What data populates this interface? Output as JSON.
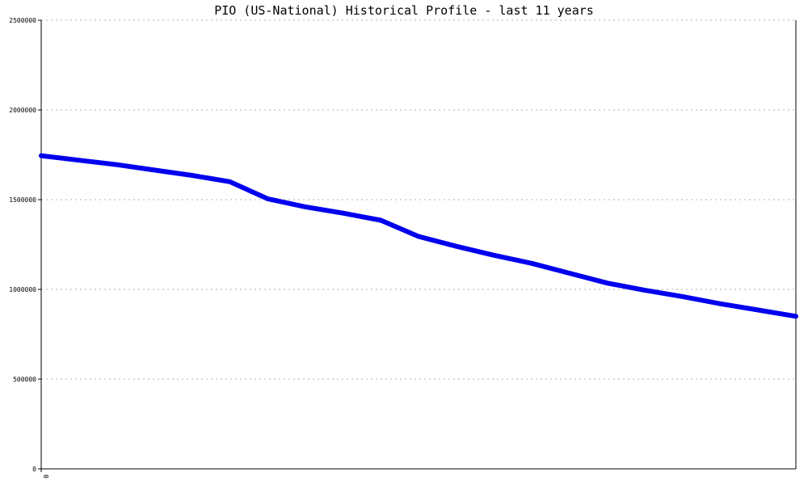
{
  "chart_data": {
    "type": "line",
    "title": "PIO (US-National) Historical Profile - last 11 years",
    "xlabel": "",
    "ylabel": "",
    "ylim": [
      0,
      2500000
    ],
    "y_ticks": [
      0,
      500000,
      1000000,
      1500000,
      2000000,
      2500000
    ],
    "y_tick_labels": [
      "0",
      "500000",
      "1000000",
      "1500000",
      "2000000",
      "2500000"
    ],
    "x_tick_labels": [
      "0"
    ],
    "grid": true,
    "series": [
      {
        "color": "#0000ee",
        "values": [
          1745000,
          1720000,
          1695000,
          1665000,
          1635000,
          1600000,
          1505000,
          1460000,
          1425000,
          1385000,
          1295000,
          1240000,
          1190000,
          1145000,
          1090000,
          1035000,
          995000,
          960000,
          920000,
          885000,
          850000
        ]
      }
    ]
  }
}
